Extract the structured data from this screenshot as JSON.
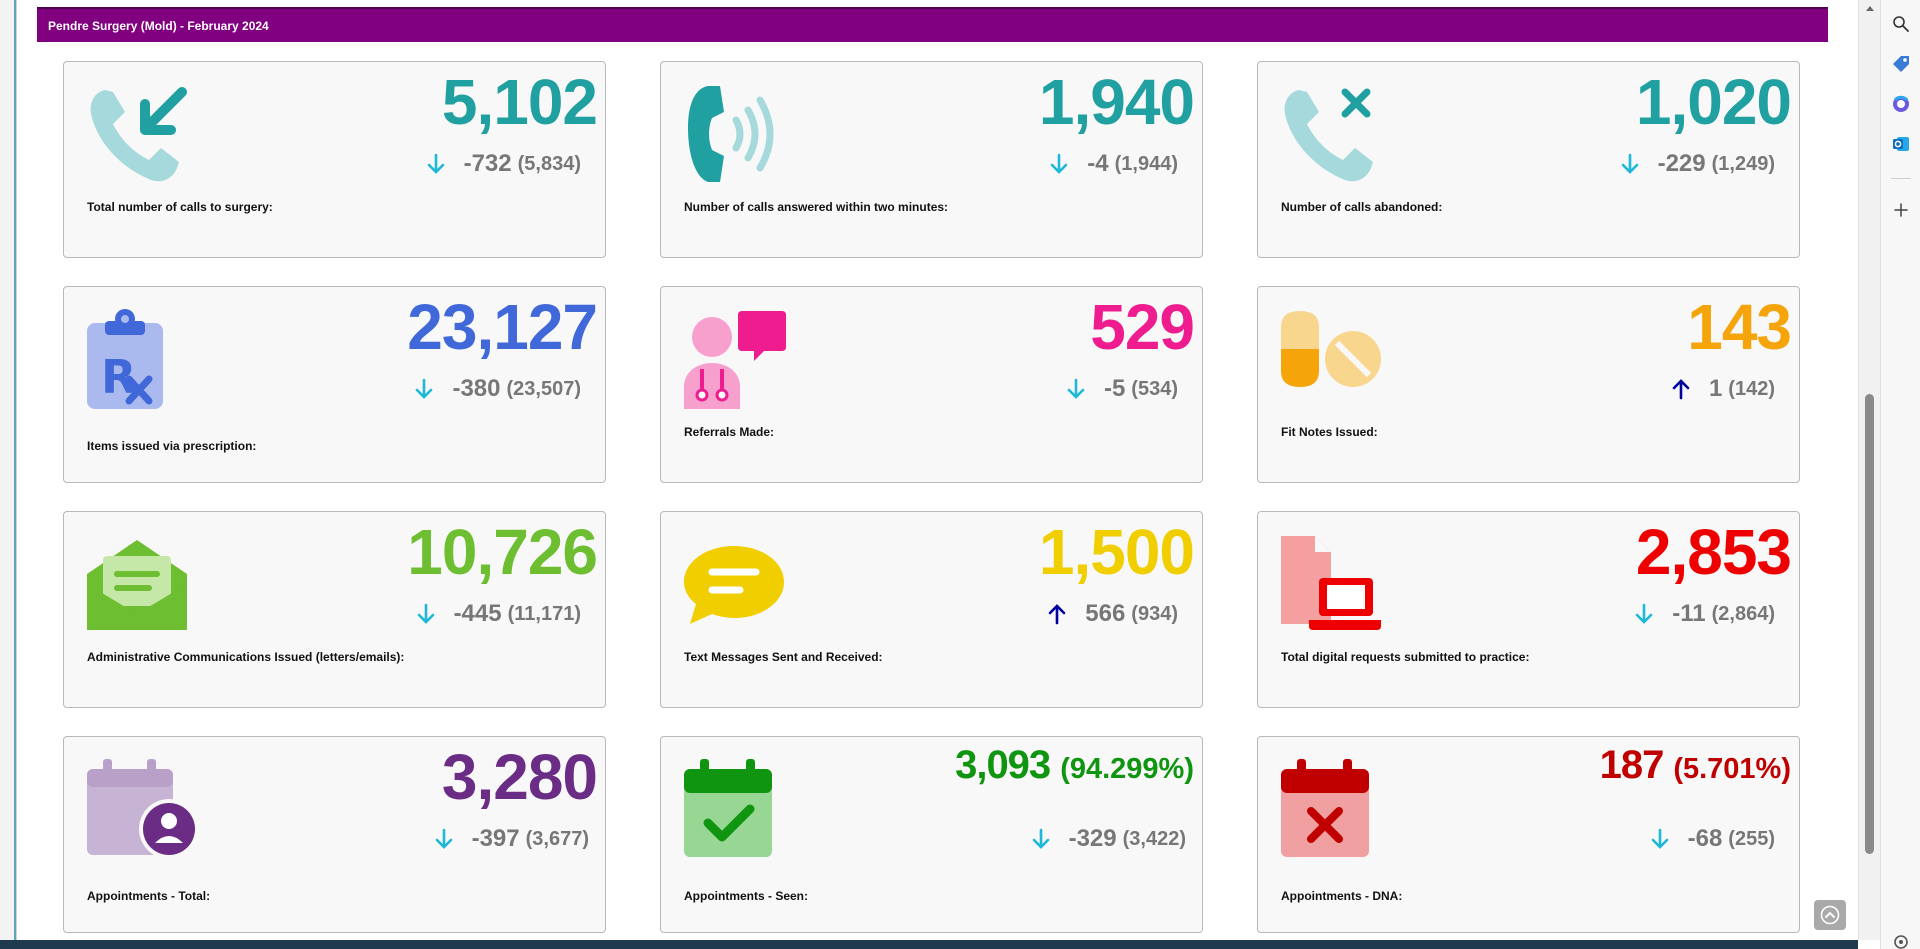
{
  "header": {
    "title": "Pendre Surgery (Mold) - February 2024"
  },
  "colors": {
    "header_bg": "#800080",
    "teal": "#20A0A0",
    "blue": "#4168D8",
    "pink": "#EE1C8E",
    "orange": "#F5A40A",
    "green_light": "#6DBE30",
    "yellow": "#F0CE00",
    "red": "#EE0000",
    "purple": "#6A2C85",
    "green": "#0F950F",
    "dark_red": "#C00000",
    "arrow_down": "#1EB8D8",
    "arrow_up": "#0000A0"
  },
  "cards": [
    {
      "label": "Total number of calls to surgery:",
      "value": "5,102",
      "delta": "-732",
      "previous": "(5,834)",
      "trend": "down",
      "icon": "phone-incoming-icon"
    },
    {
      "label": "Number of calls answered within two minutes:",
      "value": "1,940",
      "delta": "-4",
      "previous": "(1,944)",
      "trend": "down",
      "icon": "phone-ringing-icon"
    },
    {
      "label": "Number of calls abandoned:",
      "value": "1,020",
      "delta": "-229",
      "previous": "(1,249)",
      "trend": "down",
      "icon": "phone-missed-icon"
    },
    {
      "label": "Items issued via prescription:",
      "value": "23,127",
      "delta": "-380",
      "previous": "(23,507)",
      "trend": "down",
      "icon": "prescription-icon"
    },
    {
      "label": "Referrals Made:",
      "value": "529",
      "delta": "-5",
      "previous": "(534)",
      "trend": "down",
      "icon": "doctor-chat-icon"
    },
    {
      "label": "Fit Notes Issued:",
      "value": "143",
      "delta": "1",
      "previous": "(142)",
      "trend": "up",
      "icon": "pills-icon"
    },
    {
      "label": "Administrative Communications Issued (letters/emails):",
      "value": "10,726",
      "delta": "-445",
      "previous": "(11,171)",
      "trend": "down",
      "icon": "open-envelope-icon"
    },
    {
      "label": "Text Messages Sent and Received:",
      "value": "1,500",
      "delta": "566",
      "previous": "(934)",
      "trend": "up",
      "icon": "speech-bubble-icon"
    },
    {
      "label": "Total digital requests submitted to practice:",
      "value": "2,853",
      "delta": "-11",
      "previous": "(2,864)",
      "trend": "down",
      "icon": "document-laptop-icon"
    },
    {
      "label": "Appointments - Total:",
      "value": "3,280",
      "delta": "-397",
      "previous": "(3,677)",
      "trend": "down",
      "icon": "calendar-person-icon"
    },
    {
      "label": "Appointments - Seen:",
      "value": "3,093",
      "percent": "(94.299%)",
      "delta": "-329",
      "previous": "(3,422)",
      "trend": "down",
      "icon": "calendar-check-icon"
    },
    {
      "label": "Appointments - DNA:",
      "value": "187",
      "percent": "(5.701%)",
      "delta": "-68",
      "previous": "(255)",
      "trend": "down",
      "icon": "calendar-cross-icon"
    }
  ],
  "edge_panel": {
    "icons": [
      "search-icon",
      "tag-icon",
      "copilot-icon",
      "outlook-icon",
      "add-icon",
      "settings-icon"
    ]
  }
}
